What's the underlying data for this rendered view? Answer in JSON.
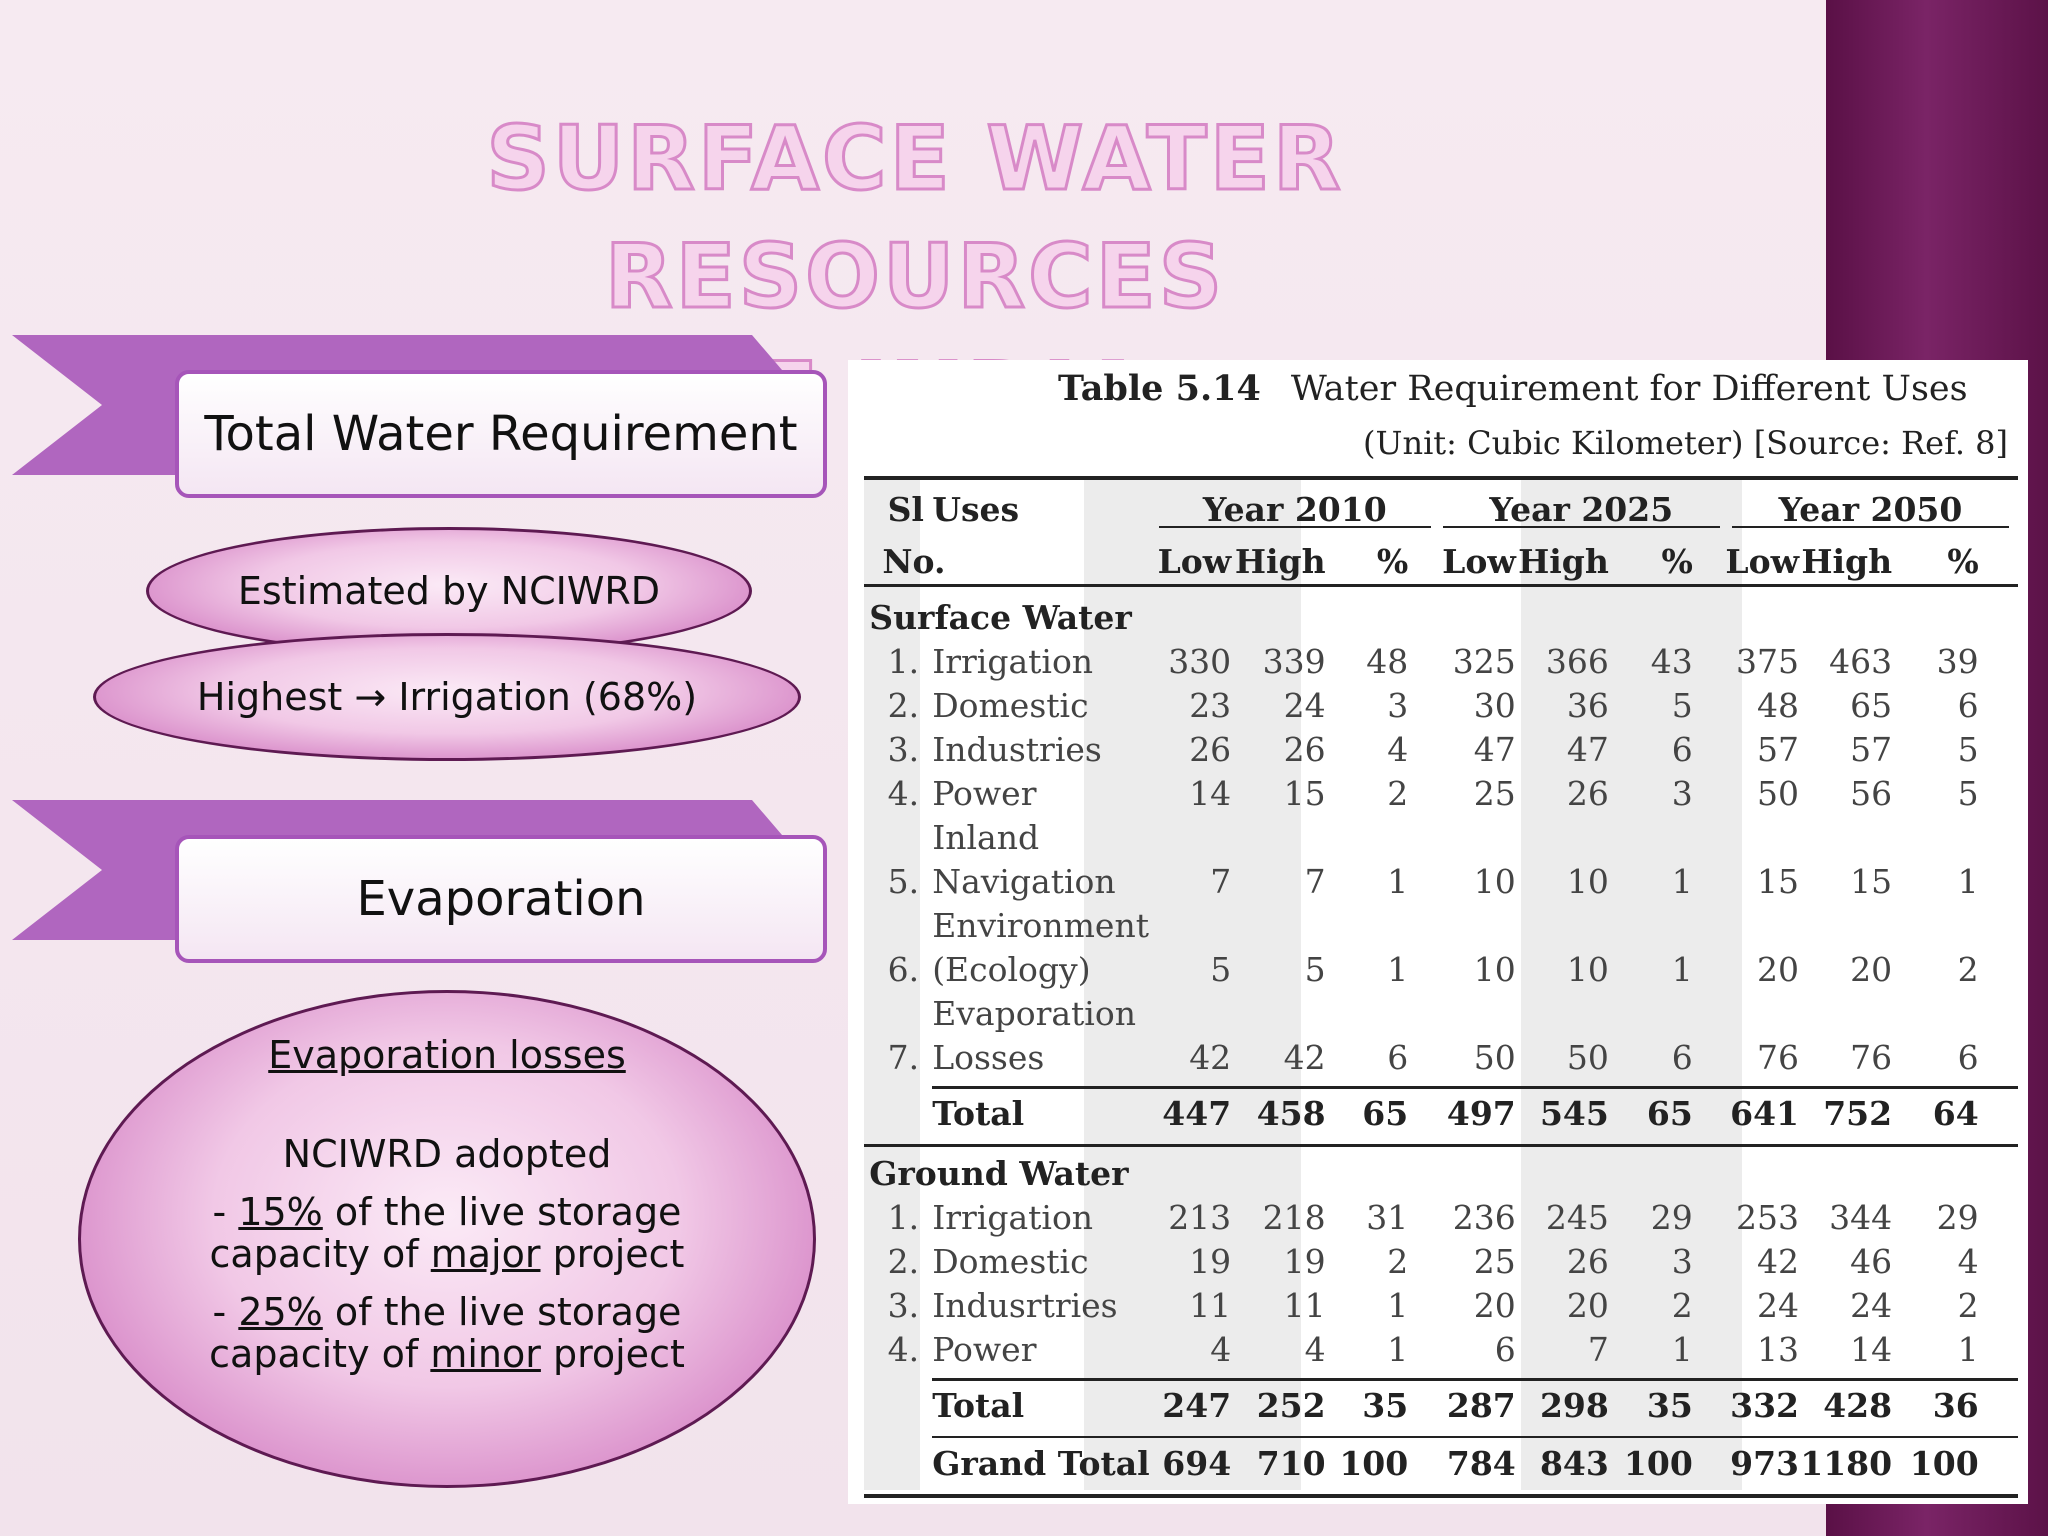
{
  "title_lines": [
    "SURFACE WATER RESOURCES",
    "OF INDIA"
  ],
  "section1": {
    "label": "Total Water Requirement",
    "bubble1": "Estimated by NCIWRD",
    "bubble2": "Highest → Irrigation (68%)"
  },
  "section2": {
    "label": "Evaporation",
    "heading": "Evaporation losses",
    "adopted": "NCIWRD adopted",
    "line1_pre": "- ",
    "line1_pct": "15%",
    "line1_post": " of the live storage",
    "line1b_pre": "capacity of ",
    "line1b_u": "major",
    "line1b_post": " project",
    "line2_pre": "- ",
    "line2_pct": "25%",
    "line2_post": " of the live storage",
    "line2b_pre": "capacity of ",
    "line2b_u": "minor",
    "line2b_post": " project"
  },
  "table": {
    "number": "Table 5.14",
    "caption": "Water Requirement for Different Uses",
    "unit": "(Unit: Cubic Kilometer) [Source: Ref. 8]",
    "col_sl": [
      "Sl",
      "No."
    ],
    "col_uses": "Uses",
    "years": [
      "Year 2010",
      "Year 2025",
      "Year 2050"
    ],
    "sub": [
      "Low",
      "High",
      "%"
    ],
    "surface_heading": "Surface Water",
    "surface_rows": [
      {
        "no": "1.",
        "use": [
          "Irrigation"
        ],
        "vals": [
          "330",
          "339",
          "48",
          "325",
          "366",
          "43",
          "375",
          "463",
          "39"
        ]
      },
      {
        "no": "2.",
        "use": [
          "Domestic"
        ],
        "vals": [
          "23",
          "24",
          "3",
          "30",
          "36",
          "5",
          "48",
          "65",
          "6"
        ]
      },
      {
        "no": "3.",
        "use": [
          "Industries"
        ],
        "vals": [
          "26",
          "26",
          "4",
          "47",
          "47",
          "6",
          "57",
          "57",
          "5"
        ]
      },
      {
        "no": "4.",
        "use": [
          "Power"
        ],
        "vals": [
          "14",
          "15",
          "2",
          "25",
          "26",
          "3",
          "50",
          "56",
          "5"
        ]
      },
      {
        "no": "5.",
        "use": [
          "Inland",
          "Navigation"
        ],
        "vals": [
          "7",
          "7",
          "1",
          "10",
          "10",
          "1",
          "15",
          "15",
          "1"
        ]
      },
      {
        "no": "6.",
        "use": [
          "Environment",
          "(Ecology)"
        ],
        "vals": [
          "5",
          "5",
          "1",
          "10",
          "10",
          "1",
          "20",
          "20",
          "2"
        ]
      },
      {
        "no": "7.",
        "use": [
          "Evaporation",
          "Losses"
        ],
        "vals": [
          "42",
          "42",
          "6",
          "50",
          "50",
          "6",
          "76",
          "76",
          "6"
        ]
      }
    ],
    "surface_total": {
      "label": "Total",
      "vals": [
        "447",
        "458",
        "65",
        "497",
        "545",
        "65",
        "641",
        "752",
        "64"
      ]
    },
    "ground_heading": "Ground Water",
    "ground_rows": [
      {
        "no": "1.",
        "use": [
          "Irrigation"
        ],
        "vals": [
          "213",
          "218",
          "31",
          "236",
          "245",
          "29",
          "253",
          "344",
          "29"
        ]
      },
      {
        "no": "2.",
        "use": [
          "Domestic"
        ],
        "vals": [
          "19",
          "19",
          "2",
          "25",
          "26",
          "3",
          "42",
          "46",
          "4"
        ]
      },
      {
        "no": "3.",
        "use": [
          "Indusrtries"
        ],
        "vals": [
          "11",
          "11",
          "1",
          "20",
          "20",
          "2",
          "24",
          "24",
          "2"
        ]
      },
      {
        "no": "4.",
        "use": [
          "Power"
        ],
        "vals": [
          "4",
          "4",
          "1",
          "6",
          "7",
          "1",
          "13",
          "14",
          "1"
        ]
      }
    ],
    "ground_total": {
      "label": "Total",
      "vals": [
        "247",
        "252",
        "35",
        "287",
        "298",
        "35",
        "332",
        "428",
        "36"
      ]
    },
    "grand_total": {
      "label": "Grand Total",
      "vals": [
        "694",
        "710",
        "100",
        "784",
        "843",
        "100",
        "973",
        "1180",
        "100"
      ]
    }
  }
}
